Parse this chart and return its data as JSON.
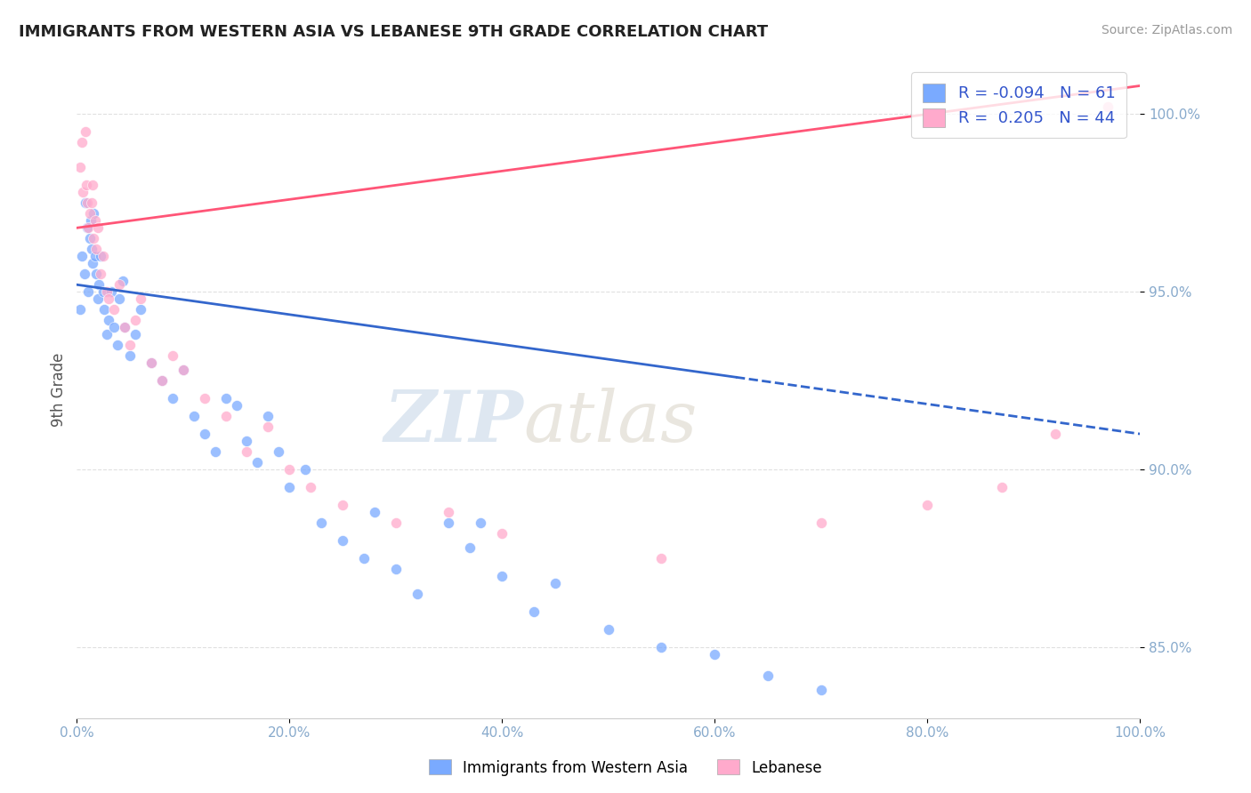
{
  "title": "IMMIGRANTS FROM WESTERN ASIA VS LEBANESE 9TH GRADE CORRELATION CHART",
  "source_text": "Source: ZipAtlas.com",
  "ylabel": "9th Grade",
  "blue_color": "#7aaaff",
  "pink_color": "#ffaacc",
  "blue_line_color": "#3366cc",
  "pink_line_color": "#ff5577",
  "R_blue": -0.094,
  "N_blue": 61,
  "R_pink": 0.205,
  "N_pink": 44,
  "legend_label_blue": "Immigrants from Western Asia",
  "legend_label_pink": "Lebanese",
  "watermark_zip": "ZIP",
  "watermark_atlas": "atlas",
  "blue_x": [
    0.3,
    0.5,
    0.7,
    0.8,
    1.0,
    1.1,
    1.2,
    1.3,
    1.4,
    1.5,
    1.6,
    1.7,
    1.8,
    2.0,
    2.1,
    2.2,
    2.5,
    2.6,
    2.8,
    3.0,
    3.2,
    3.5,
    3.8,
    4.0,
    4.3,
    4.5,
    5.0,
    5.5,
    6.0,
    7.0,
    8.0,
    9.0,
    10.0,
    11.0,
    12.0,
    13.0,
    14.0,
    15.0,
    16.0,
    17.0,
    18.0,
    19.0,
    20.0,
    21.5,
    23.0,
    25.0,
    27.0,
    28.0,
    30.0,
    32.0,
    35.0,
    37.0,
    38.0,
    40.0,
    43.0,
    45.0,
    50.0,
    55.0,
    60.0,
    65.0,
    70.0
  ],
  "blue_y": [
    94.5,
    96.0,
    95.5,
    97.5,
    96.8,
    95.0,
    96.5,
    97.0,
    96.2,
    95.8,
    97.2,
    96.0,
    95.5,
    94.8,
    95.2,
    96.0,
    95.0,
    94.5,
    93.8,
    94.2,
    95.0,
    94.0,
    93.5,
    94.8,
    95.3,
    94.0,
    93.2,
    93.8,
    94.5,
    93.0,
    92.5,
    92.0,
    92.8,
    91.5,
    91.0,
    90.5,
    92.0,
    91.8,
    90.8,
    90.2,
    91.5,
    90.5,
    89.5,
    90.0,
    88.5,
    88.0,
    87.5,
    88.8,
    87.2,
    86.5,
    88.5,
    87.8,
    88.5,
    87.0,
    86.0,
    86.8,
    85.5,
    85.0,
    84.8,
    84.2,
    83.8
  ],
  "pink_x": [
    0.3,
    0.5,
    0.6,
    0.8,
    0.9,
    1.0,
    1.1,
    1.2,
    1.4,
    1.5,
    1.6,
    1.7,
    1.8,
    2.0,
    2.2,
    2.5,
    2.8,
    3.0,
    3.5,
    4.0,
    4.5,
    5.0,
    5.5,
    6.0,
    7.0,
    8.0,
    9.0,
    10.0,
    12.0,
    14.0,
    16.0,
    18.0,
    20.0,
    22.0,
    25.0,
    30.0,
    35.0,
    40.0,
    55.0,
    70.0,
    80.0,
    87.0,
    92.0,
    97.0
  ],
  "pink_y": [
    98.5,
    99.2,
    97.8,
    99.5,
    98.0,
    97.5,
    96.8,
    97.2,
    97.5,
    98.0,
    96.5,
    97.0,
    96.2,
    96.8,
    95.5,
    96.0,
    95.0,
    94.8,
    94.5,
    95.2,
    94.0,
    93.5,
    94.2,
    94.8,
    93.0,
    92.5,
    93.2,
    92.8,
    92.0,
    91.5,
    90.5,
    91.2,
    90.0,
    89.5,
    89.0,
    88.5,
    88.8,
    88.2,
    87.5,
    88.5,
    89.0,
    89.5,
    91.0,
    100.2
  ],
  "blue_trend_x0": 0,
  "blue_trend_y0": 95.2,
  "blue_trend_x1": 100,
  "blue_trend_y1": 91.0,
  "blue_solid_end": 62,
  "pink_trend_x0": 0,
  "pink_trend_y0": 96.8,
  "pink_trend_x1": 100,
  "pink_trend_y1": 100.8,
  "ytick_values": [
    85,
    90,
    95,
    100
  ],
  "ytick_labels": [
    "85.0%",
    "90.0%",
    "95.0%",
    "100.0%"
  ],
  "xtick_values": [
    0,
    20,
    40,
    60,
    80,
    100
  ],
  "xtick_labels": [
    "0.0%",
    "20.0%",
    "40.0%",
    "60.0%",
    "80.0%",
    "100.0%"
  ],
  "xlim": [
    0,
    100
  ],
  "ylim": [
    83.0,
    101.5
  ],
  "tick_color": "#88aacc",
  "grid_color": "#dddddd",
  "title_fontsize": 13,
  "source_fontsize": 10,
  "tick_fontsize": 11
}
